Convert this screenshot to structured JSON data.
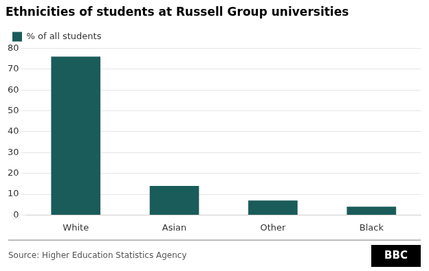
{
  "chart_data": {
    "type": "bar",
    "title": "Ethnicities of students at Russell Group universities",
    "categories": [
      "White",
      "Asian",
      "Other",
      "Black"
    ],
    "series": [
      {
        "name": "% of all students",
        "color": "#1a5c5a",
        "values": [
          76,
          14,
          7,
          4
        ]
      }
    ],
    "ylim": [
      0,
      80
    ],
    "yticks": [
      0,
      10,
      20,
      30,
      40,
      50,
      60,
      70,
      80
    ],
    "grid": true,
    "legend": "top",
    "annotations": [
      "Source: Higher Education Statistics Agency",
      "BBC"
    ]
  }
}
